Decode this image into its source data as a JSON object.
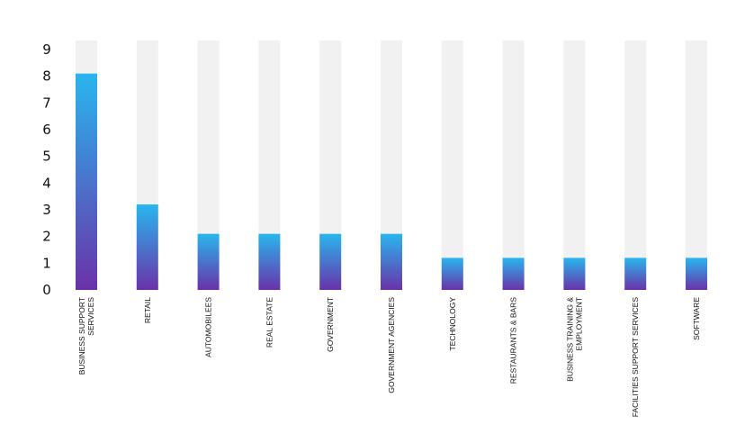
{
  "chart_data": {
    "type": "bar",
    "title": "",
    "xlabel": "",
    "ylabel": "",
    "ylim": [
      0,
      9
    ],
    "y_ticks": [
      0,
      1,
      2,
      3,
      4,
      5,
      6,
      7,
      8,
      9
    ],
    "grid": false,
    "legend": "none",
    "categories": [
      [
        "BUSINESS SUPPORT",
        "SERVICES"
      ],
      [
        "RETAIL"
      ],
      [
        "AUTOMOBILEES"
      ],
      [
        "REAL ESTATE"
      ],
      [
        "GOVERNMENT"
      ],
      [
        "GOVERNMENT AGENCIES"
      ],
      [
        "TECHNOLOGY"
      ],
      [
        "RESTAURANTS & BARS"
      ],
      [
        "BUSINESS TRAINING &",
        "EMPLOYMENT"
      ],
      [
        "FACILITIES SUPPORT SERVICES"
      ],
      [
        "SOFTWARE"
      ]
    ],
    "values": [
      8.1,
      3.2,
      2.1,
      2.1,
      2.1,
      2.1,
      1.2,
      1.2,
      1.2,
      1.2,
      1.2
    ],
    "colors": {
      "bar_top": "#29b6ee",
      "bar_bottom": "#6a32a8",
      "track": "#f1f1f1"
    }
  }
}
